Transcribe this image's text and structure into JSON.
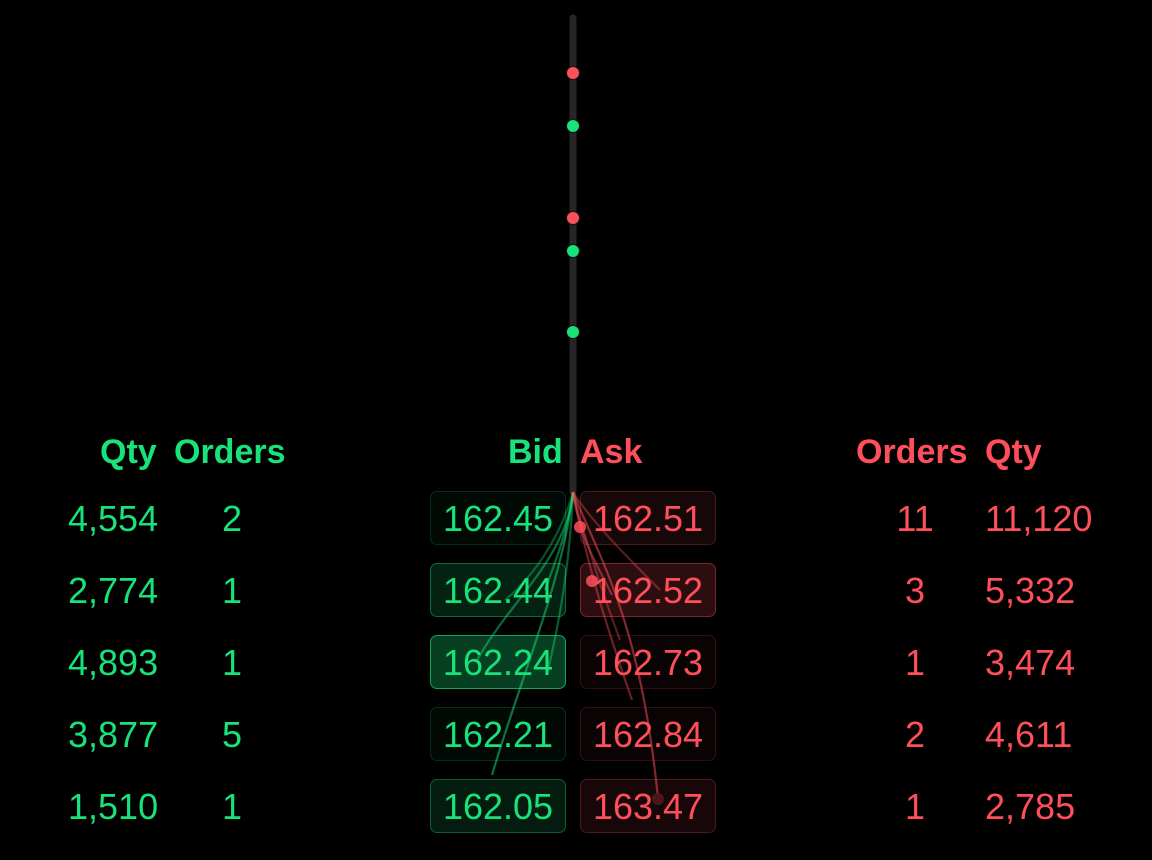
{
  "bid_header": {
    "qty": "Qty",
    "orders": "Orders",
    "price": "Bid"
  },
  "ask_header": {
    "price": "Ask",
    "orders": "Orders",
    "qty": "Qty"
  },
  "bids": [
    {
      "qty": "4,554",
      "orders": "2",
      "price": "162.45",
      "intensity": 0.0
    },
    {
      "qty": "2,774",
      "orders": "1",
      "price": "162.44",
      "intensity": 0.45
    },
    {
      "qty": "4,893",
      "orders": "1",
      "price": "162.24",
      "intensity": 1.0
    },
    {
      "qty": "3,877",
      "orders": "5",
      "price": "162.21",
      "intensity": 0.0
    },
    {
      "qty": "1,510",
      "orders": "1",
      "price": "162.05",
      "intensity": 0.35
    }
  ],
  "asks": [
    {
      "price": "162.51",
      "orders": "11",
      "qty": "11,120",
      "intensity": 0.25
    },
    {
      "price": "162.52",
      "orders": "3",
      "qty": "5,332",
      "intensity": 0.75
    },
    {
      "price": "162.73",
      "orders": "1",
      "qty": "3,474",
      "intensity": 0.0
    },
    {
      "price": "162.84",
      "orders": "2",
      "qty": "4,611",
      "intensity": 0.0
    },
    {
      "price": "163.47",
      "orders": "1",
      "qty": "2,785",
      "intensity": 0.3
    }
  ],
  "trade_dots": [
    {
      "side": "ask"
    },
    {
      "side": "bid"
    },
    {
      "side": "ask"
    },
    {
      "side": "bid"
    },
    {
      "side": "bid"
    }
  ],
  "colors": {
    "bid": "#18e27a",
    "ask": "#ff4f5a",
    "background": "#000000",
    "track": "#262626"
  }
}
